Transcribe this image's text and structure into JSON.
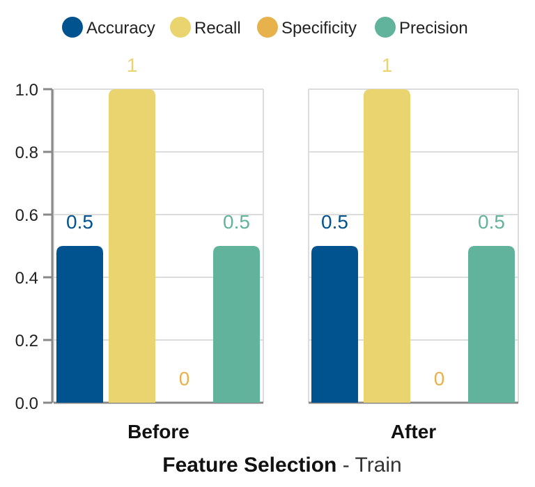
{
  "chart_data": {
    "type": "bar",
    "title_bold": "Feature Selection",
    "title_rest": " - Train",
    "panels": [
      "Before",
      "After"
    ],
    "series": [
      {
        "name": "Accuracy",
        "color": "#00538f",
        "values": [
          0.5,
          0.5
        ],
        "labels": [
          "0.5",
          "0.5"
        ]
      },
      {
        "name": "Recall",
        "color": "#e9d470",
        "values": [
          1,
          1
        ],
        "labels": [
          "1",
          "1"
        ]
      },
      {
        "name": "Specificity",
        "color": "#e7b14b",
        "values": [
          0,
          0
        ],
        "labels": [
          "0",
          "0"
        ]
      },
      {
        "name": "Precision",
        "color": "#62b39c",
        "values": [
          0.5,
          0.5
        ],
        "labels": [
          "0.5",
          "0.5"
        ]
      }
    ],
    "ylim": [
      0,
      1
    ],
    "yticks": [
      "0.0",
      "0.2",
      "0.4",
      "0.6",
      "0.8",
      "1.0"
    ],
    "grid": true,
    "legend_position": "top"
  }
}
